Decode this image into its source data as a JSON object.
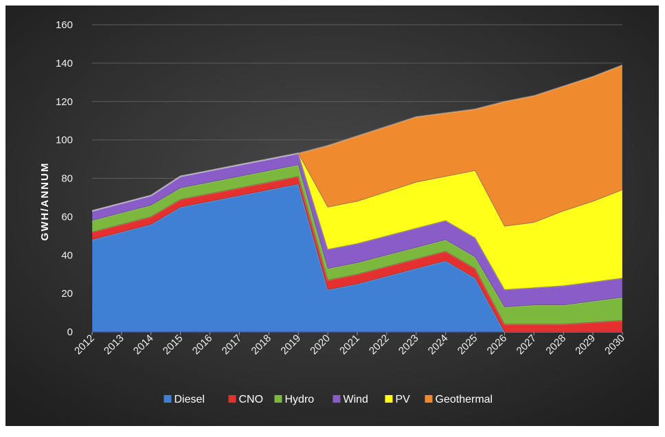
{
  "chart_data": {
    "type": "area",
    "stacked": true,
    "ylabel": "GWH/ANNUM",
    "xlabel": "",
    "title": "",
    "ylim": [
      0,
      160
    ],
    "yticks": [
      0,
      20,
      40,
      60,
      80,
      100,
      120,
      140,
      160
    ],
    "grid": true,
    "legend_position": "bottom",
    "categories": [
      "2012",
      "2013",
      "2014",
      "2015",
      "2016",
      "2017",
      "2018",
      "2019",
      "2020",
      "2021",
      "2022",
      "2023",
      "2024",
      "2025",
      "2026",
      "2027",
      "2028",
      "2029",
      "2030"
    ],
    "series": [
      {
        "name": "Diesel",
        "color": "#3f7fd4",
        "values": [
          48,
          52,
          56,
          65,
          68,
          71,
          74,
          77,
          22,
          25,
          29,
          33,
          37,
          28,
          0,
          0,
          0,
          0,
          0
        ]
      },
      {
        "name": "CNO",
        "color": "#e53030",
        "values": [
          4,
          4,
          4,
          4,
          4,
          4,
          4,
          4,
          5,
          5,
          5,
          5,
          5,
          5,
          4,
          4,
          4,
          5,
          6
        ]
      },
      {
        "name": "Hydro",
        "color": "#7cb83e",
        "values": [
          6,
          6,
          6,
          6,
          6,
          6,
          6,
          6,
          6,
          6,
          6,
          6,
          6,
          6,
          9,
          10,
          10,
          11,
          12
        ]
      },
      {
        "name": "Wind",
        "color": "#8a5cc8",
        "values": [
          5,
          5,
          5,
          6,
          6,
          6,
          6,
          6,
          10,
          10,
          10,
          10,
          10,
          10,
          9,
          9,
          10,
          10,
          10
        ]
      },
      {
        "name": "PV",
        "color": "#ffff1a",
        "values": [
          0,
          0,
          0,
          0,
          0,
          0,
          0,
          0,
          22,
          22,
          23,
          24,
          23,
          35,
          33,
          34,
          39,
          42,
          46
        ]
      },
      {
        "name": "Geothermal",
        "color": "#ef8a2e",
        "values": [
          0,
          0,
          0,
          0,
          0,
          0,
          0,
          0,
          32,
          34,
          34,
          34,
          33,
          32,
          65,
          66,
          65,
          65,
          65
        ]
      }
    ]
  }
}
